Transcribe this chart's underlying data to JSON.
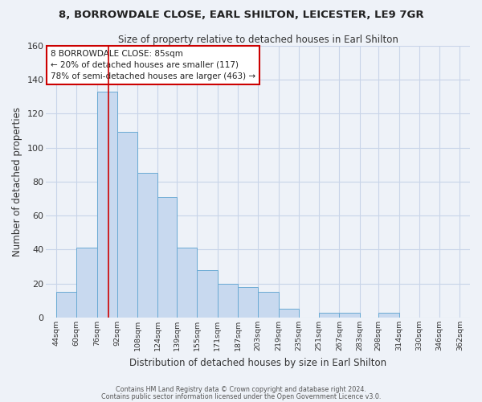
{
  "title_line1": "8, BORROWDALE CLOSE, EARL SHILTON, LEICESTER, LE9 7GR",
  "title_line2": "Size of property relative to detached houses in Earl Shilton",
  "xlabel": "Distribution of detached houses by size in Earl Shilton",
  "ylabel": "Number of detached properties",
  "bar_left_edges": [
    44,
    60,
    76,
    92,
    108,
    124,
    139,
    155,
    171,
    187,
    203,
    219,
    235,
    251,
    267,
    283,
    298,
    314,
    330,
    346
  ],
  "bar_widths": [
    16,
    16,
    16,
    16,
    16,
    15,
    16,
    16,
    16,
    16,
    16,
    16,
    16,
    16,
    16,
    15,
    16,
    16,
    16,
    16
  ],
  "bar_heights": [
    15,
    41,
    133,
    109,
    85,
    71,
    41,
    28,
    20,
    18,
    15,
    5,
    0,
    3,
    3,
    0,
    3,
    0,
    0,
    0
  ],
  "bar_color": "#c8d9ef",
  "bar_edge_color": "#6aaad4",
  "tick_labels": [
    "44sqm",
    "60sqm",
    "76sqm",
    "92sqm",
    "108sqm",
    "124sqm",
    "139sqm",
    "155sqm",
    "171sqm",
    "187sqm",
    "203sqm",
    "219sqm",
    "235sqm",
    "251sqm",
    "267sqm",
    "283sqm",
    "298sqm",
    "314sqm",
    "330sqm",
    "346sqm",
    "362sqm"
  ],
  "tick_positions": [
    44,
    60,
    76,
    92,
    108,
    124,
    139,
    155,
    171,
    187,
    203,
    219,
    235,
    251,
    267,
    283,
    298,
    314,
    330,
    346,
    362
  ],
  "ytick_positions": [
    0,
    20,
    40,
    60,
    80,
    100,
    120,
    140,
    160
  ],
  "ylim": [
    0,
    160
  ],
  "xlim": [
    36,
    370
  ],
  "property_line_x": 85,
  "property_line_color": "#cc0000",
  "annotation_text": "8 BORROWDALE CLOSE: 85sqm\n← 20% of detached houses are smaller (117)\n78% of semi-detached houses are larger (463) →",
  "grid_color": "#c8d4e8",
  "background_color": "#eef2f8",
  "footer_line1": "Contains HM Land Registry data © Crown copyright and database right 2024.",
  "footer_line2": "Contains public sector information licensed under the Open Government Licence v3.0."
}
